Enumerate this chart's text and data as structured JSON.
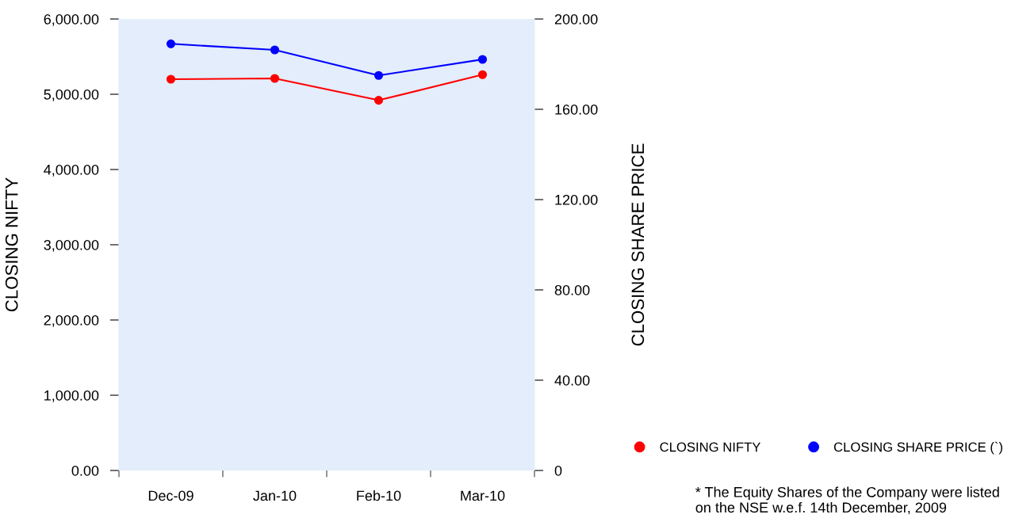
{
  "chart_data": {
    "type": "line",
    "xlabel": null,
    "ylabel": "CLOSING NIFTY",
    "y2label": "CLOSING SHARE PRICE",
    "categories": [
      "Dec-09",
      "Jan-10",
      "Feb-10",
      "Mar-10"
    ],
    "series": [
      {
        "name": "CLOSING NIFTY",
        "color": "#ff0000",
        "values": [
          5200,
          5210,
          4920,
          5260
        ]
      },
      {
        "name": "CLOSING SHARE PRICE (`)",
        "color": "#0000ff",
        "axis": "y2",
        "values": [
          189,
          186.3,
          175,
          182.1
        ]
      }
    ],
    "ylim": [
      0,
      6000
    ],
    "yticks": [
      {
        "value": 0,
        "label": "0.00"
      },
      {
        "value": 1000,
        "label": "1,000.00"
      },
      {
        "value": 2000,
        "label": "2,000.00"
      },
      {
        "value": 3000,
        "label": "3,000.00"
      },
      {
        "value": 4000,
        "label": "4,000.00"
      },
      {
        "value": 5000,
        "label": "5,000.00"
      },
      {
        "value": 6000,
        "label": "6,000.00"
      }
    ],
    "y2lim": [
      0,
      200
    ],
    "y2ticks": [
      0,
      {
        "value": 40,
        "label": "40.00"
      },
      {
        "value": 80,
        "label": "80.00"
      },
      {
        "value": 120,
        "label": "120.00"
      },
      {
        "value": 160,
        "label": "160.00"
      },
      {
        "value": 200,
        "label": "200.00"
      }
    ],
    "marker": "circle",
    "line_style": "solid",
    "grid": false,
    "legend": "bottom right",
    "annotations": [
      "* The Equity Shares of the Company were listed on the NSE w.e.f. 14th December, 2009"
    ]
  }
}
